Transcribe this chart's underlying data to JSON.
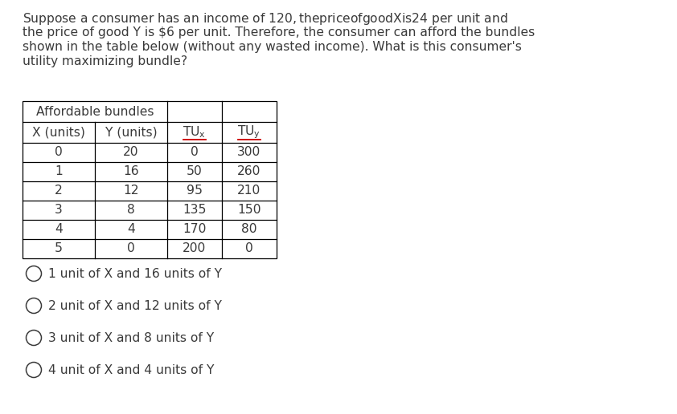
{
  "question_lines": [
    "Suppose a consumer has an income of $120, the price of good X is $24 per unit and",
    "the price of good Y is $6 per unit. Therefore, the consumer can afford the bundles",
    "shown in the table below (without any wasted income). What is this consumer's",
    "utility maximizing bundle?"
  ],
  "table_header_merged": "Affordable bundles",
  "col_headers": [
    "X (units)",
    "Y (units)",
    "TU_x",
    "TU_y"
  ],
  "tu_underline_color": "#cc0000",
  "table_data": [
    [
      0,
      20,
      0,
      300
    ],
    [
      1,
      16,
      50,
      260
    ],
    [
      2,
      12,
      95,
      210
    ],
    [
      3,
      8,
      135,
      150
    ],
    [
      4,
      4,
      170,
      80
    ],
    [
      5,
      0,
      200,
      0
    ]
  ],
  "answer_choices": [
    "1 unit of X and 16 units of Y",
    "2 unit of X and 12 units of Y",
    "3 unit of X and 8 units of Y",
    "4 unit of X and 4 units of Y"
  ],
  "text_color": "#3a3a3a",
  "table_border_color": "#000000",
  "bg_color": "#ffffff",
  "font_size_question": 11.2,
  "font_size_table": 11.2,
  "font_size_choices": 11.2
}
